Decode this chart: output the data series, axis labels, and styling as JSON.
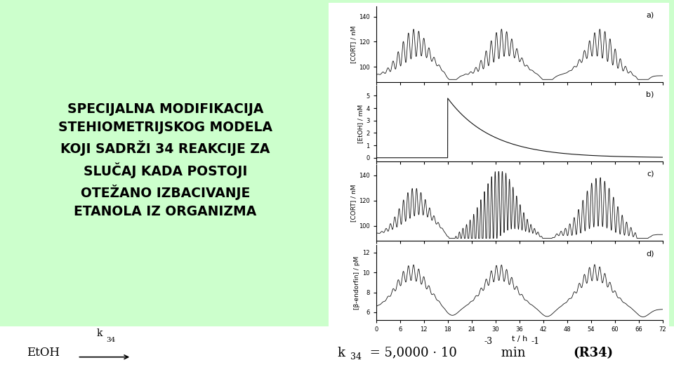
{
  "bg_color": "#ccffcc",
  "title_lines": [
    "SPECIJALNA MODIFIKACIJA",
    "STEHIOMETRIJSKOG MODELA",
    "KOJI SADRŽI 34 REAKCIJE ZA",
    "SLUČAJ KADA POSTOJI",
    "OTEŽANO IZBACIVANJE",
    "ETANOLA IZ ORGANIZMA"
  ],
  "curve_color": "#111111",
  "panel_a_ylabel": "[CORT] / nM",
  "panel_b_ylabel": "[EtOH] / mM",
  "panel_c_ylabel": "[CORT] / nM",
  "panel_d_ylabel": "[β-endorfin] / pM",
  "xlabel": "t / h",
  "panel_labels": [
    "a)",
    "b)",
    "c)",
    "d)"
  ],
  "x_ticks": [
    0,
    6,
    12,
    18,
    24,
    30,
    36,
    42,
    48,
    54,
    60,
    66,
    72
  ],
  "panel_a_ylim": [
    88,
    148
  ],
  "panel_a_yticks": [
    100,
    120,
    140
  ],
  "panel_b_ylim": [
    -0.3,
    5.8
  ],
  "panel_b_yticks": [
    0,
    1,
    2,
    3,
    4,
    5
  ],
  "panel_c_ylim": [
    88,
    148
  ],
  "panel_c_yticks": [
    100,
    120,
    140
  ],
  "panel_d_ylim": [
    5.2,
    12.8
  ],
  "panel_d_yticks": [
    6,
    8,
    10,
    12
  ]
}
